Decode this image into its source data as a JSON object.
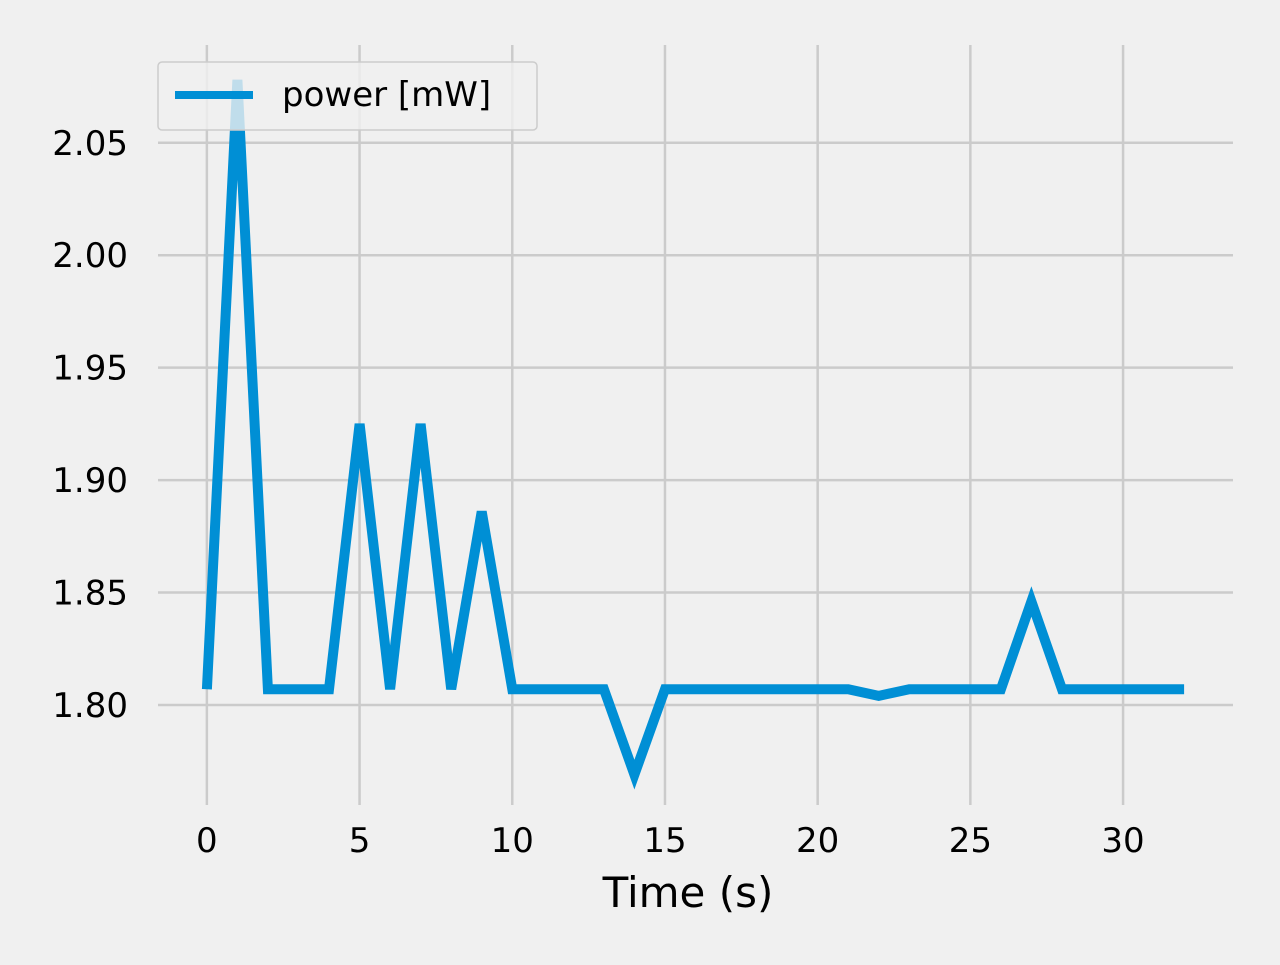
{
  "chart_data": {
    "type": "line",
    "title": "",
    "xlabel": "Time (s)",
    "ylabel": "",
    "x": [
      0,
      1,
      2,
      3,
      4,
      5,
      6,
      7,
      8,
      9,
      10,
      11,
      12,
      13,
      14,
      15,
      16,
      17,
      18,
      19,
      20,
      21,
      22,
      23,
      24,
      25,
      26,
      27,
      28,
      29,
      30,
      31,
      32
    ],
    "series": [
      {
        "name": "power [mW]",
        "color": "#008fd5",
        "values": [
          1.807,
          2.078,
          1.807,
          1.807,
          1.807,
          1.925,
          1.807,
          1.925,
          1.807,
          1.886,
          1.807,
          1.807,
          1.807,
          1.807,
          1.769,
          1.807,
          1.807,
          1.807,
          1.807,
          1.807,
          1.807,
          1.807,
          1.804,
          1.807,
          1.807,
          1.807,
          1.807,
          1.846,
          1.807,
          1.807,
          1.807,
          1.807,
          1.807
        ]
      }
    ],
    "xticks": [
      0,
      5,
      10,
      15,
      20,
      25,
      30
    ],
    "xtick_labels": [
      "0",
      "5",
      "10",
      "15",
      "20",
      "25",
      "30"
    ],
    "yticks": [
      1.8,
      1.85,
      1.9,
      1.95,
      2.0,
      2.05
    ],
    "ytick_labels": [
      "1.80",
      "1.85",
      "1.90",
      "1.95",
      "2.00",
      "2.05"
    ],
    "xlim": [
      -1.6,
      33.6
    ],
    "ylim": [
      1.7555,
      2.0935
    ],
    "grid": true,
    "legend_position": "upper-left"
  }
}
